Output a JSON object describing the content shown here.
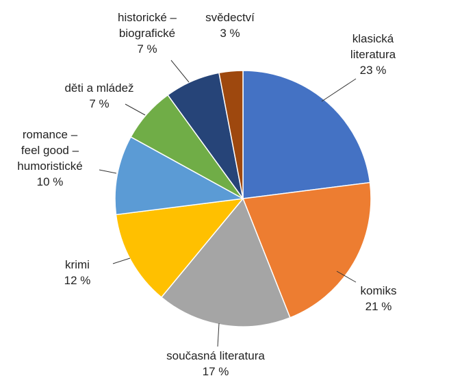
{
  "chart_data": {
    "type": "pie",
    "categories": [
      "klasická\nliteratura",
      "komiks",
      "současná literatura",
      "krimi",
      "romance –\nfeel good –\nhumoristické",
      "děti a mládež",
      "historické –\nbiografické",
      "svědectví"
    ],
    "values": [
      23,
      21,
      17,
      12,
      10,
      7,
      7,
      3
    ],
    "value_labels": [
      "23 %",
      "21 %",
      "17 %",
      "12 %",
      "10 %",
      "7 %",
      "7 %",
      "3 %"
    ],
    "colors": [
      "#4472c4",
      "#ed7d31",
      "#a5a5a5",
      "#ffc000",
      "#5b9bd5",
      "#70ad47",
      "#264478",
      "#9e480e"
    ]
  }
}
